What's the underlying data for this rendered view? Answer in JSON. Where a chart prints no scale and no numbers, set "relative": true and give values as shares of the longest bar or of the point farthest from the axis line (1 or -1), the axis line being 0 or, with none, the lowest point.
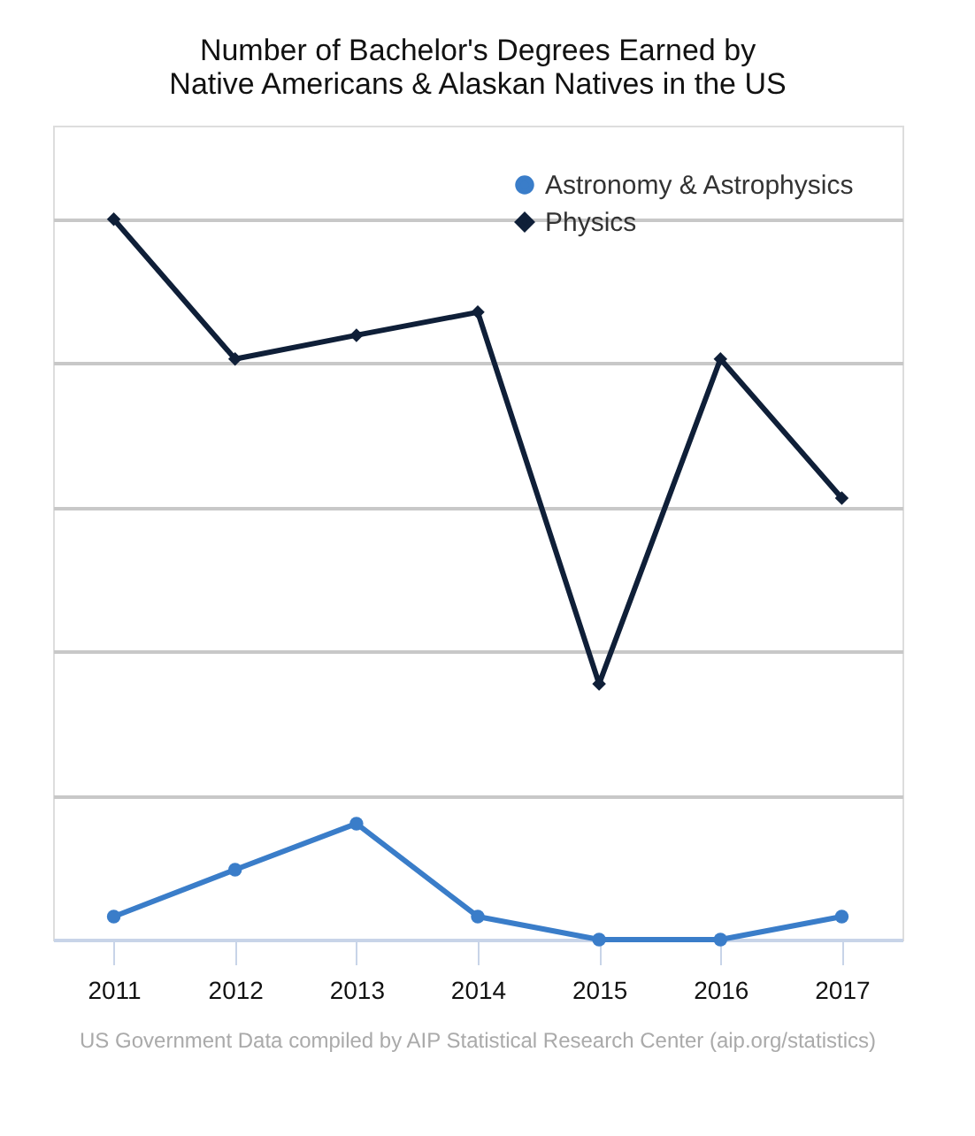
{
  "chart_data": {
    "type": "line",
    "title": [
      "Number of Bachelor's Degrees Earned by",
      "Native Americans & Alaskan Natives in the US"
    ],
    "categories": [
      "2011",
      "2012",
      "2013",
      "2014",
      "2015",
      "2016",
      "2017"
    ],
    "relative": true,
    "grid": "y",
    "legend": "top right",
    "series": [
      {
        "name": "Astronomy & Astrophysics",
        "color": "#3a7dc9",
        "marker": "circle",
        "values": [
          0.032,
          0.097,
          0.161,
          0.032,
          0,
          0,
          0.032
        ]
      },
      {
        "name": "Physics",
        "color": "#0f1f38",
        "marker": "diamond",
        "values": [
          1,
          0.806,
          0.839,
          0.871,
          0.355,
          0.806,
          0.613
        ]
      }
    ],
    "annotations": [
      "US Government Data compiled by AIP Statistical Research Center (aip.org/statistics)"
    ]
  }
}
